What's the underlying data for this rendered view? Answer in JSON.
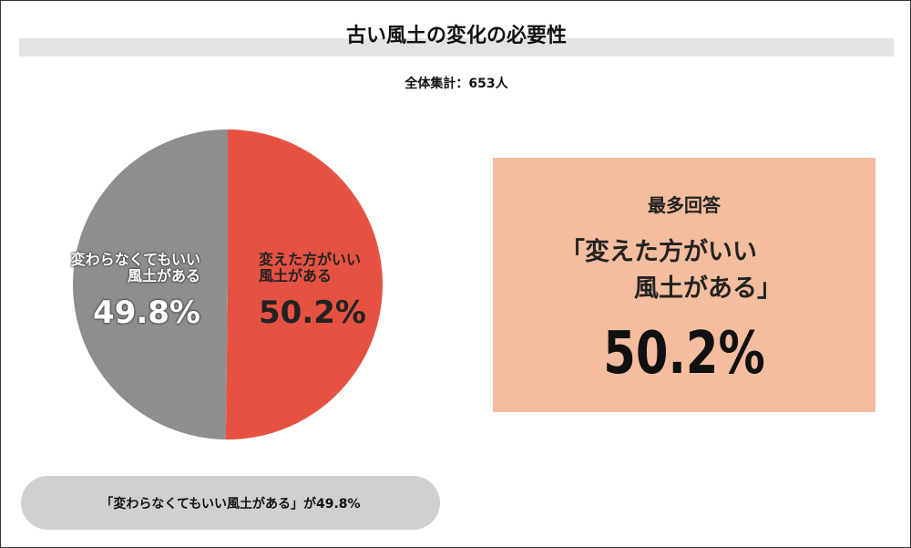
{
  "chart_data": {
    "type": "pie",
    "title": "古い風土の変化の必要性",
    "subtitle": "全体集計：653人",
    "categories": [
      "変わらなくてもいい\n風土がある",
      "変えた方がいい\n風土がある"
    ],
    "values": [
      49.8,
      50.2
    ],
    "value_labels": [
      "49.8%",
      "50.2%"
    ],
    "colors": [
      "#8e8e8e",
      "#e65242"
    ]
  },
  "highlight": {
    "heading": "最多回答",
    "label": "「変えた方がいい\n　　　風土がある」",
    "value_label": "50.2%"
  },
  "footer": "「変わらなくてもいい風土がある」が49.8%"
}
